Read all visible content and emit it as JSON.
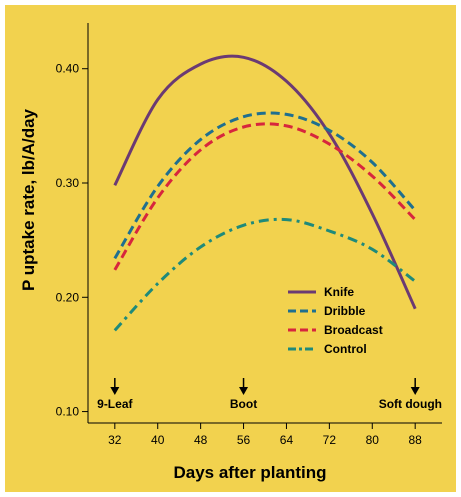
{
  "colors": {
    "background": "#f2d24e",
    "knife": "#6b3a73",
    "dribble": "#1f6f8f",
    "broadcast": "#d7263d",
    "control": "#1f8a7a",
    "axis": "#000000"
  },
  "chart_data": {
    "type": "line",
    "xlabel": "Days after planting",
    "ylabel": "P uptake rate, lb/A/day",
    "xlim": [
      27,
      93
    ],
    "ylim": [
      0.09,
      0.44
    ],
    "x_ticks": [
      32,
      40,
      48,
      56,
      64,
      72,
      80,
      88
    ],
    "y_ticks": [
      0.1,
      0.2,
      0.3,
      0.4
    ],
    "y_tick_labels": [
      "0.10",
      "0.20",
      "0.30",
      "0.40"
    ],
    "grid": false,
    "legend_position": "bottom-right",
    "stages": [
      {
        "label": "9-Leaf",
        "x": 32
      },
      {
        "label": "Boot",
        "x": 56
      },
      {
        "label": "Soft dough",
        "x": 88
      }
    ],
    "series": [
      {
        "name": "Knife",
        "style": "solid",
        "x": [
          32,
          40,
          48,
          56,
          64,
          72,
          80,
          88
        ],
        "values": [
          0.298,
          0.373,
          0.404,
          0.41,
          0.389,
          0.343,
          0.273,
          0.19
        ]
      },
      {
        "name": "Dribble",
        "style": "dashed",
        "x": [
          32,
          40,
          48,
          56,
          64,
          72,
          80,
          88
        ],
        "values": [
          0.234,
          0.297,
          0.338,
          0.358,
          0.36,
          0.346,
          0.318,
          0.276
        ]
      },
      {
        "name": "Broadcast",
        "style": "dashed",
        "x": [
          32,
          40,
          48,
          56,
          64,
          72,
          80,
          88
        ],
        "values": [
          0.224,
          0.287,
          0.329,
          0.349,
          0.35,
          0.334,
          0.306,
          0.268
        ]
      },
      {
        "name": "Control",
        "style": "dashdot",
        "x": [
          32,
          40,
          48,
          56,
          64,
          72,
          80,
          88
        ],
        "values": [
          0.171,
          0.212,
          0.244,
          0.263,
          0.268,
          0.258,
          0.242,
          0.214
        ]
      }
    ]
  }
}
